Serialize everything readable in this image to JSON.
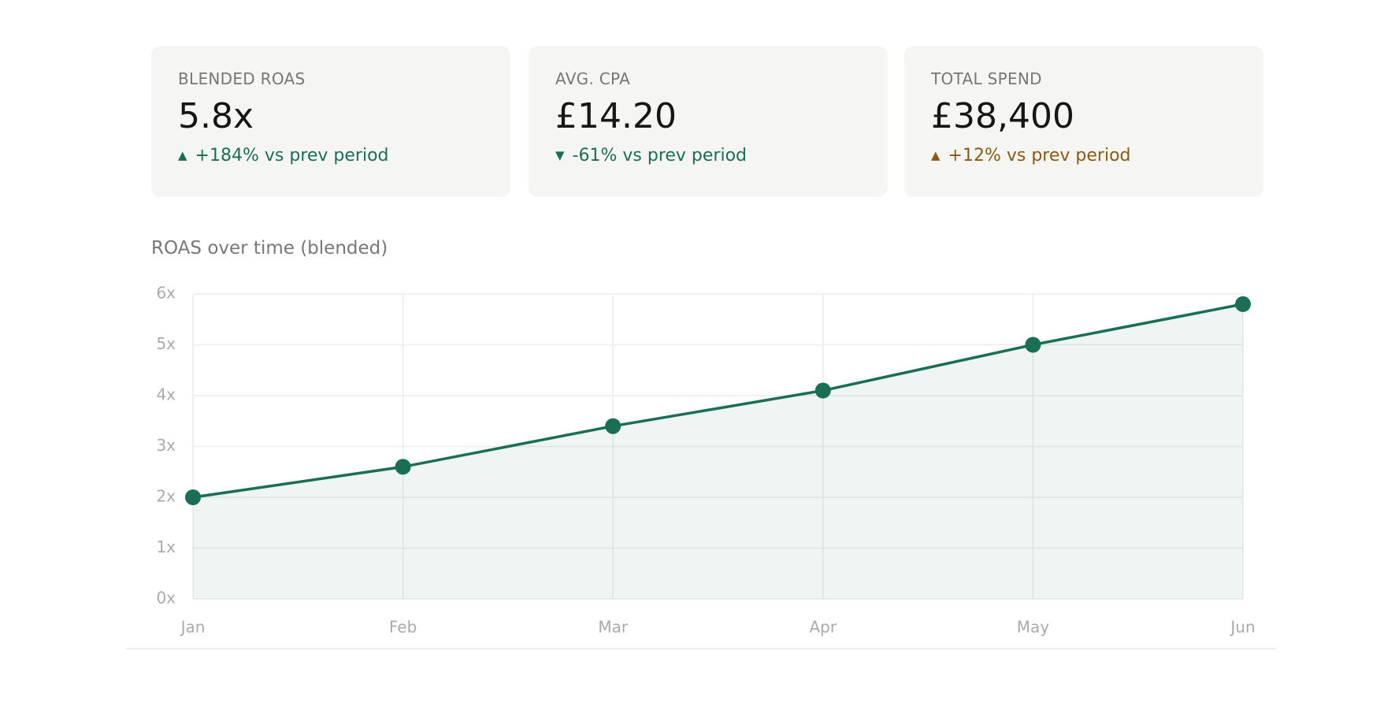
{
  "kpis": [
    {
      "label": "BLENDED ROAS",
      "value": "5.8x",
      "delta": "+184% vs prev period",
      "direction": "up",
      "color": "#1a6e55"
    },
    {
      "label": "AVG. CPA",
      "value": "£14.20",
      "delta": "-61% vs prev period",
      "direction": "down",
      "color": "#1a6e55"
    },
    {
      "label": "TOTAL SPEND",
      "value": "£38,400",
      "delta": "+12% vs prev period",
      "direction": "up",
      "color": "#8a5a13"
    }
  ],
  "chart_data": {
    "type": "line",
    "title": "ROAS over time (blended)",
    "categories": [
      "Jan",
      "Feb",
      "Mar",
      "Apr",
      "May",
      "Jun"
    ],
    "series": [
      {
        "name": "Blended ROAS",
        "color": "#1a6e55",
        "values": [
          2.0,
          2.6,
          3.4,
          4.1,
          5.0,
          5.8
        ]
      }
    ],
    "ylim": [
      0,
      6
    ],
    "yticks": [
      {
        "value": 0,
        "label": "0x"
      },
      {
        "value": 1,
        "label": "1x"
      },
      {
        "value": 2,
        "label": "2x"
      },
      {
        "value": 3,
        "label": "3x"
      },
      {
        "value": 4,
        "label": "4x"
      },
      {
        "value": 5,
        "label": "5x"
      },
      {
        "value": 6,
        "label": "6x"
      }
    ],
    "grid": true,
    "area": true
  }
}
